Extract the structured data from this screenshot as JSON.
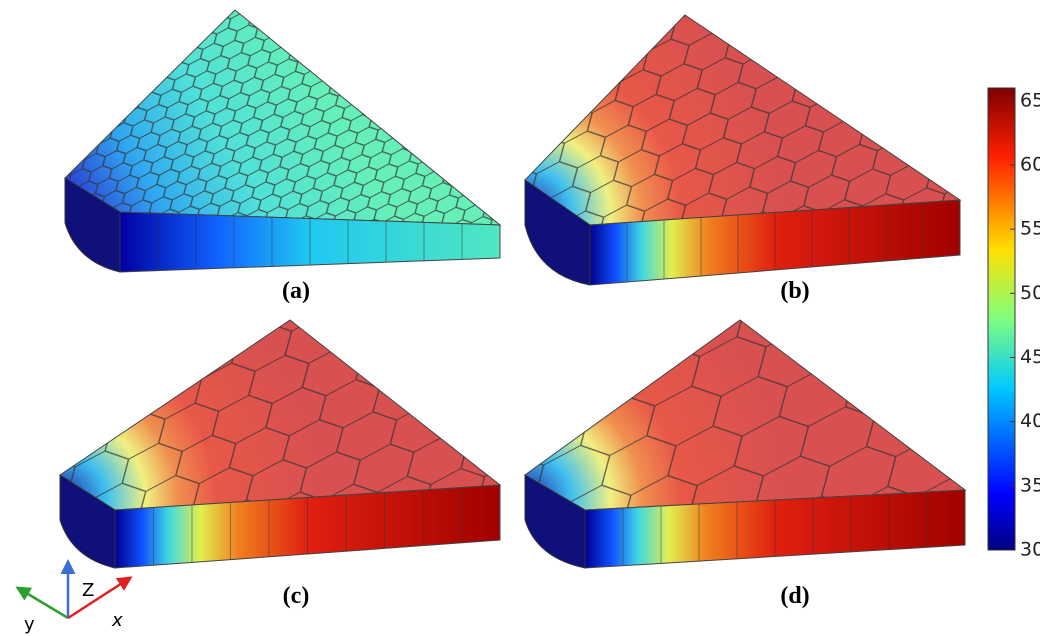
{
  "panels": [
    {
      "label": "(a)"
    },
    {
      "label": "(b)"
    },
    {
      "label": "(c)"
    },
    {
      "label": "(d)"
    }
  ],
  "colorbar": {
    "lim": [
      30,
      66
    ],
    "ticks": [
      30,
      35,
      40,
      45,
      50,
      55,
      60,
      65
    ]
  },
  "axes": {
    "y": "y",
    "z": "Z",
    "x": "x"
  }
}
